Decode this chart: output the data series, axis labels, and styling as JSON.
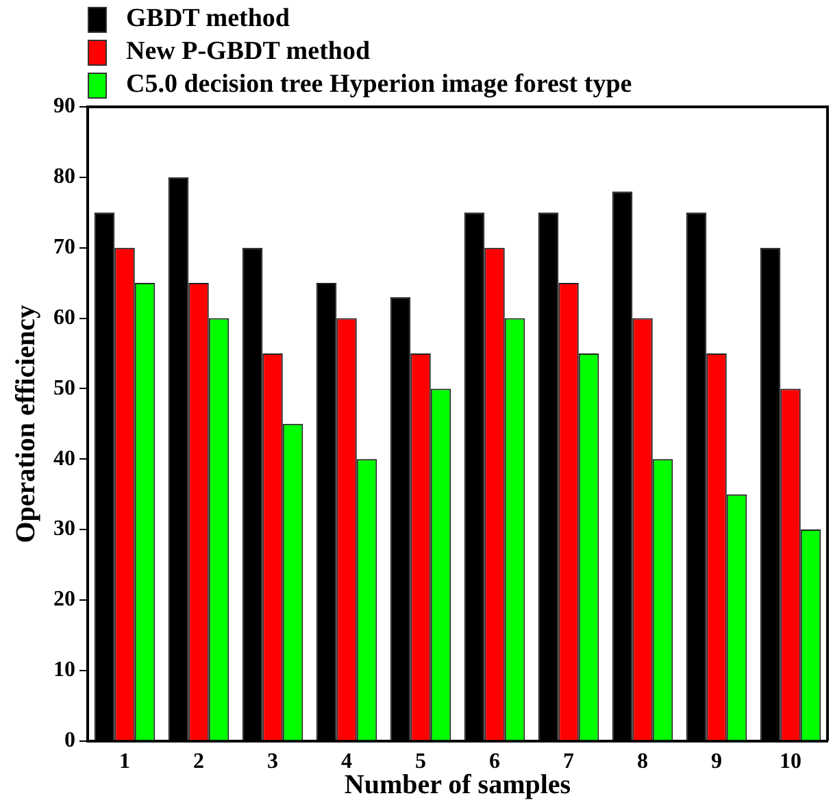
{
  "chart_data": {
    "type": "bar",
    "xlabel": "Number of samples",
    "ylabel": "Operation efficiency",
    "categories": [
      "1",
      "2",
      "3",
      "4",
      "5",
      "6",
      "7",
      "8",
      "9",
      "10"
    ],
    "series": [
      {
        "name": "GBDT method",
        "color": "#000000",
        "values": [
          75,
          80,
          70,
          65,
          63,
          75,
          75,
          78,
          75,
          70
        ]
      },
      {
        "name": "New P-GBDT method",
        "color": "#ff0000",
        "values": [
          70,
          65,
          55,
          60,
          55,
          70,
          65,
          60,
          55,
          50
        ]
      },
      {
        "name": "C5.0 decision tree Hyperion image forest type",
        "color": "#00ff00",
        "values": [
          65,
          60,
          45,
          40,
          50,
          60,
          55,
          40,
          35,
          30
        ]
      }
    ],
    "ylim": [
      0,
      90
    ],
    "yticks": [
      0,
      10,
      20,
      30,
      40,
      50,
      60,
      70,
      80,
      90
    ],
    "grid": false,
    "legend": "top left"
  }
}
